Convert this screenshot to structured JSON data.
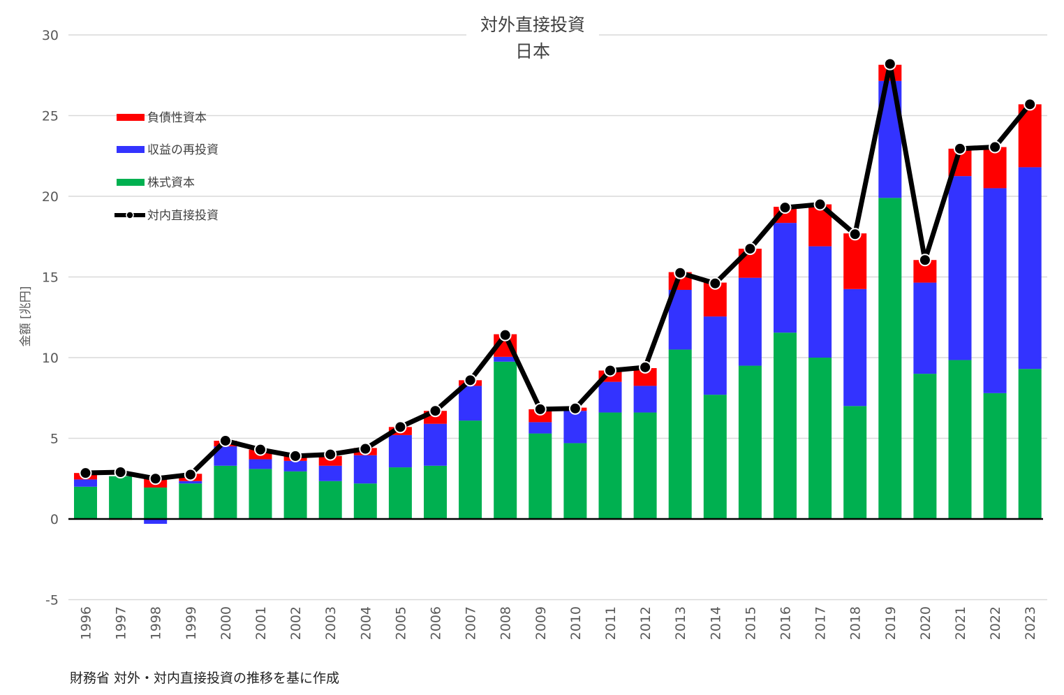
{
  "chart_data": {
    "type": "bar",
    "title": "対外直接投資",
    "subtitle": "日本",
    "ylabel": "金額 [兆円]",
    "xlabel": "",
    "ylim": [
      -5,
      30
    ],
    "yticks": [
      -5,
      0,
      5,
      10,
      15,
      20,
      25,
      30
    ],
    "grid": true,
    "legend_position": "top-left",
    "categories": [
      "1996",
      "1997",
      "1998",
      "1999",
      "2000",
      "2001",
      "2002",
      "2003",
      "2004",
      "2005",
      "2006",
      "2007",
      "2008",
      "2009",
      "2010",
      "2011",
      "2012",
      "2013",
      "2014",
      "2015",
      "2016",
      "2017",
      "2018",
      "2019",
      "2020",
      "2021",
      "2022",
      "2023"
    ],
    "series": [
      {
        "name": "株式資本",
        "kind": "bar",
        "color": "#00b050",
        "values": [
          2.0,
          2.65,
          1.95,
          2.2,
          3.3,
          3.1,
          2.95,
          2.35,
          2.2,
          3.2,
          3.3,
          6.1,
          9.75,
          5.3,
          4.7,
          6.6,
          6.6,
          10.5,
          7.7,
          9.5,
          11.55,
          10.0,
          7.0,
          19.9,
          9.0,
          9.85,
          7.8,
          9.3
        ]
      },
      {
        "name": "収益の再投資",
        "kind": "bar",
        "color": "#3333ff",
        "values": [
          0.45,
          0.0,
          -0.3,
          0.15,
          1.2,
          0.6,
          0.65,
          0.95,
          1.75,
          2.0,
          2.6,
          2.15,
          0.3,
          0.7,
          2.0,
          1.9,
          1.65,
          3.7,
          4.85,
          5.45,
          6.8,
          6.9,
          7.25,
          7.25,
          5.65,
          11.4,
          12.7,
          12.5
        ]
      },
      {
        "name": "負債性資本",
        "kind": "bar",
        "color": "#ff0000",
        "values": [
          0.4,
          -0.05,
          0.55,
          0.45,
          0.35,
          0.6,
          0.3,
          0.6,
          0.45,
          0.5,
          0.8,
          0.35,
          1.4,
          0.8,
          0.2,
          0.7,
          1.1,
          1.1,
          2.1,
          1.8,
          1.0,
          2.6,
          3.45,
          1.0,
          1.4,
          1.7,
          2.55,
          3.9
        ]
      },
      {
        "name": "対内直接投資",
        "kind": "line",
        "color": "#000000",
        "values": [
          2.85,
          2.9,
          2.5,
          2.75,
          4.85,
          4.3,
          3.9,
          4.0,
          4.35,
          5.7,
          6.7,
          8.6,
          11.4,
          6.8,
          6.85,
          9.2,
          9.4,
          15.25,
          14.6,
          16.75,
          19.3,
          19.5,
          17.65,
          28.2,
          16.05,
          22.95,
          23.05,
          25.7
        ]
      }
    ]
  },
  "legend": {
    "items": [
      {
        "label": "負債性資本",
        "color": "#ff0000",
        "kind": "bar"
      },
      {
        "label": "収益の再投資",
        "color": "#3333ff",
        "kind": "bar"
      },
      {
        "label": "株式資本",
        "color": "#00b050",
        "kind": "bar"
      },
      {
        "label": "対内直接投資",
        "color": "#000000",
        "kind": "line"
      }
    ]
  },
  "source": "財務省 対外・対内直接投資の推移を基に作成"
}
